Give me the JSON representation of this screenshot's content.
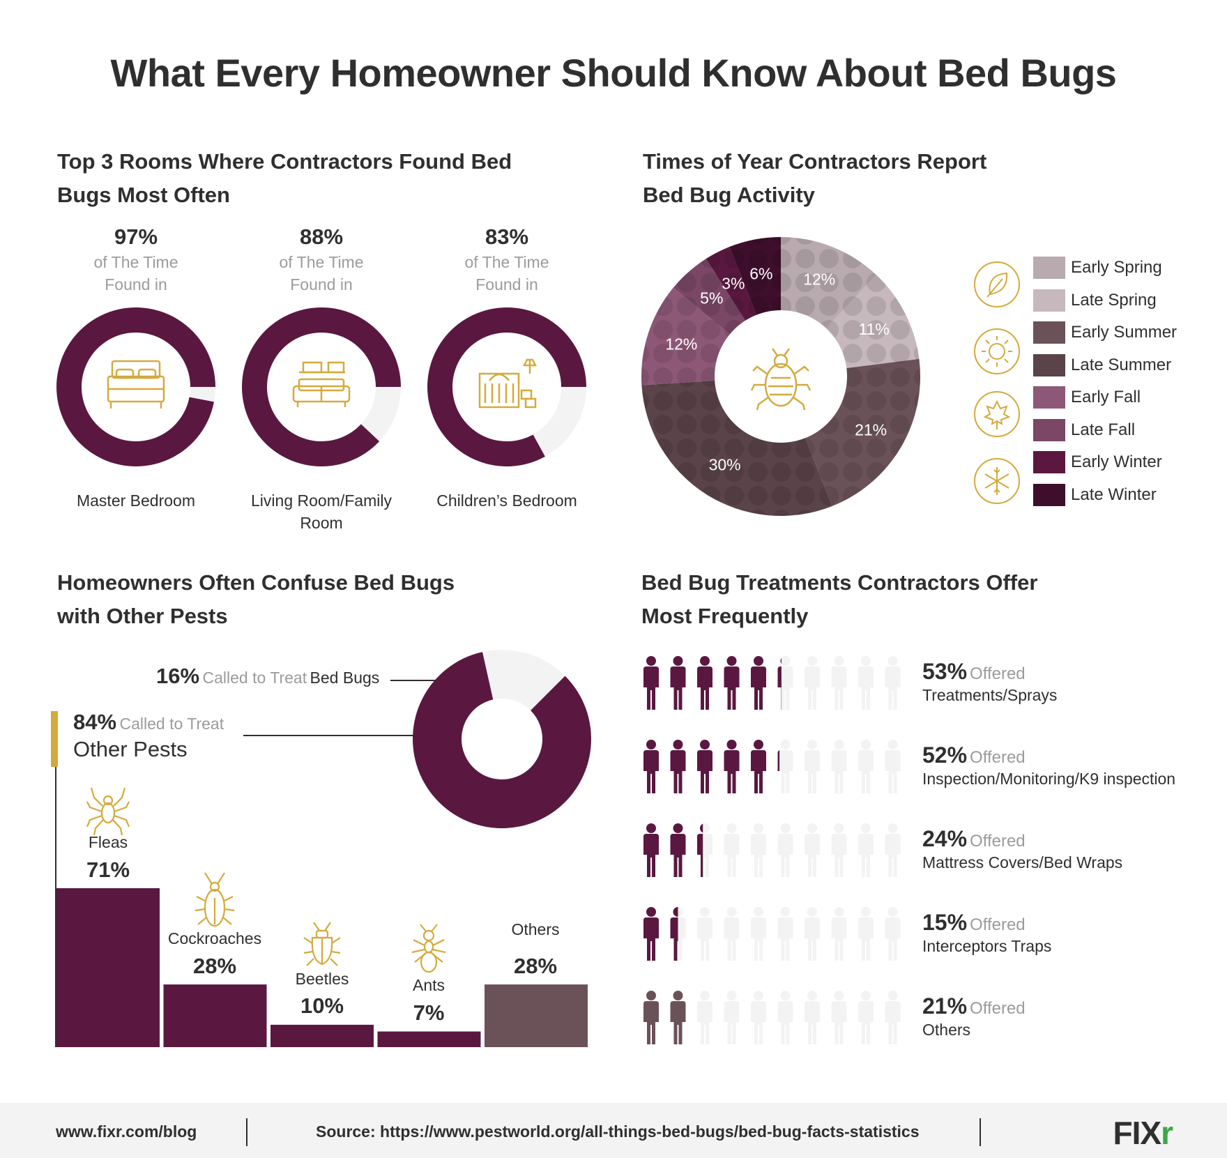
{
  "title": "What Every Homeowner Should Know About Bed Bugs",
  "rooms": {
    "title_line1": "Top 3 Rooms Where Contractors Found Bed",
    "title_line2": "Bugs Most Often",
    "items": [
      {
        "pct": "97%",
        "sub1": "of The Time",
        "sub2": "Found in",
        "name1": "Master Bedroom",
        "name2": "",
        "value": 97,
        "icon": "bed-icon"
      },
      {
        "pct": "88%",
        "sub1": "of The Time",
        "sub2": "Found in",
        "name1": "Living Room/Family",
        "name2": "Room",
        "value": 88,
        "icon": "sofa-icon"
      },
      {
        "pct": "83%",
        "sub1": "of The Time",
        "sub2": "Found in",
        "name1": "Children’s  Bedroom",
        "name2": "",
        "value": 83,
        "icon": "crib-icon"
      }
    ]
  },
  "seasons": {
    "title_line1": "Times of Year Contractors Report",
    "title_line2": "Bed Bug Activity",
    "center_icon": "bed-bug-icon",
    "season_icons": [
      "leaf-icon",
      "sun-icon",
      "maple-leaf-icon",
      "snowflake-icon"
    ],
    "legend": [
      {
        "label": "Early Spring",
        "color": "#b9aab0"
      },
      {
        "label": "Late Spring",
        "color": "#c6b8bd"
      },
      {
        "label": "Early Summer",
        "color": "#6b5258"
      },
      {
        "label": "Late Summer",
        "color": "#5a4349"
      },
      {
        "label": "Early Fall",
        "color": "#8d5877"
      },
      {
        "label": "Late Fall",
        "color": "#7b4766"
      },
      {
        "label": "Early Winter",
        "color": "#5a1840"
      },
      {
        "label": "Late Winter",
        "color": "#3e0f2c"
      }
    ]
  },
  "confuse": {
    "title_line1": "Homeowners Often Confuse Bed Bugs",
    "title_line2": "with Other Pests",
    "bedbugs_pct": "16%",
    "bedbugs_text1": "Called to Treat",
    "bedbugs_text2": "Bed Bugs",
    "other_pct": "84%",
    "other_text1": "Called to Treat",
    "other_text2": "Other Pests",
    "pests": [
      {
        "label": "Fleas",
        "pct": "71%",
        "icon": "spider-icon"
      },
      {
        "label": "Cockroaches",
        "pct": "28%",
        "icon": "cockroach-icon"
      },
      {
        "label": "Beetles",
        "pct": "10%",
        "icon": "beetle-icon"
      },
      {
        "label": "Ants",
        "pct": "7%",
        "icon": "ant-icon"
      },
      {
        "label": "Others",
        "pct": "28%",
        "icon": ""
      }
    ]
  },
  "treatments": {
    "title_line1": "Bed Bug Treatments Contractors Offer",
    "title_line2": "Most Frequently",
    "offered_word": "Offered",
    "items": [
      {
        "pct": "53%",
        "name": "Treatments/Sprays",
        "value": 53,
        "color": "#5a1840"
      },
      {
        "pct": "52%",
        "name": "Inspection/Monitoring/K9 inspection",
        "value": 52,
        "color": "#5a1840"
      },
      {
        "pct": "24%",
        "name": "Mattress Covers/Bed Wraps",
        "value": 24,
        "color": "#5a1840"
      },
      {
        "pct": "15%",
        "name": "Interceptors Traps",
        "value": 15,
        "color": "#5a1840"
      },
      {
        "pct": "21%",
        "name": "Others",
        "value": 21,
        "color": "#6b5258"
      }
    ]
  },
  "footer": {
    "blog": "www.fixr.com/blog",
    "source": "Source: https://www.pestworld.org/all-things-bed-bugs/bed-bug-facts-statistics",
    "logo_main": "FIX",
    "logo_accent": "r"
  },
  "chart_data": [
    {
      "type": "pie",
      "title": "Top 3 Rooms Where Contractors Found Bed Bugs Most Often",
      "categories": [
        "Master Bedroom",
        "Living Room/Family Room",
        "Children’s  Bedroom"
      ],
      "values": [
        97,
        88,
        83
      ]
    },
    {
      "type": "pie",
      "title": "Times of Year Contractors Report Bed Bug Activity",
      "categories": [
        "Early Spring",
        "Late Spring",
        "Early Summer",
        "Late Summer",
        "Early Fall",
        "Late Fall",
        "Early Winter",
        "Late Winter"
      ],
      "values": [
        12,
        11,
        21,
        30,
        12,
        5,
        3,
        6
      ],
      "legend": "right"
    },
    {
      "type": "pie",
      "title": "Homeowners Often Confuse Bed Bugs with Other Pests",
      "categories": [
        "Called to Treat Bed Bugs",
        "Called to Treat Other Pests"
      ],
      "values": [
        16,
        84
      ]
    },
    {
      "type": "bar",
      "categories": [
        "Fleas",
        "Cockroaches",
        "Beetles",
        "Ants",
        "Others"
      ],
      "values": [
        71,
        28,
        10,
        7,
        28
      ]
    },
    {
      "type": "bar",
      "title": "Bed Bug Treatments Contractors Offer Most Frequently",
      "categories": [
        "Treatments/Sprays",
        "Inspection/Monitoring/K9 inspection",
        "Mattress Covers/Bed Wraps",
        "Interceptors Traps",
        "Others"
      ],
      "values": [
        53,
        52,
        24,
        15,
        21
      ]
    }
  ]
}
